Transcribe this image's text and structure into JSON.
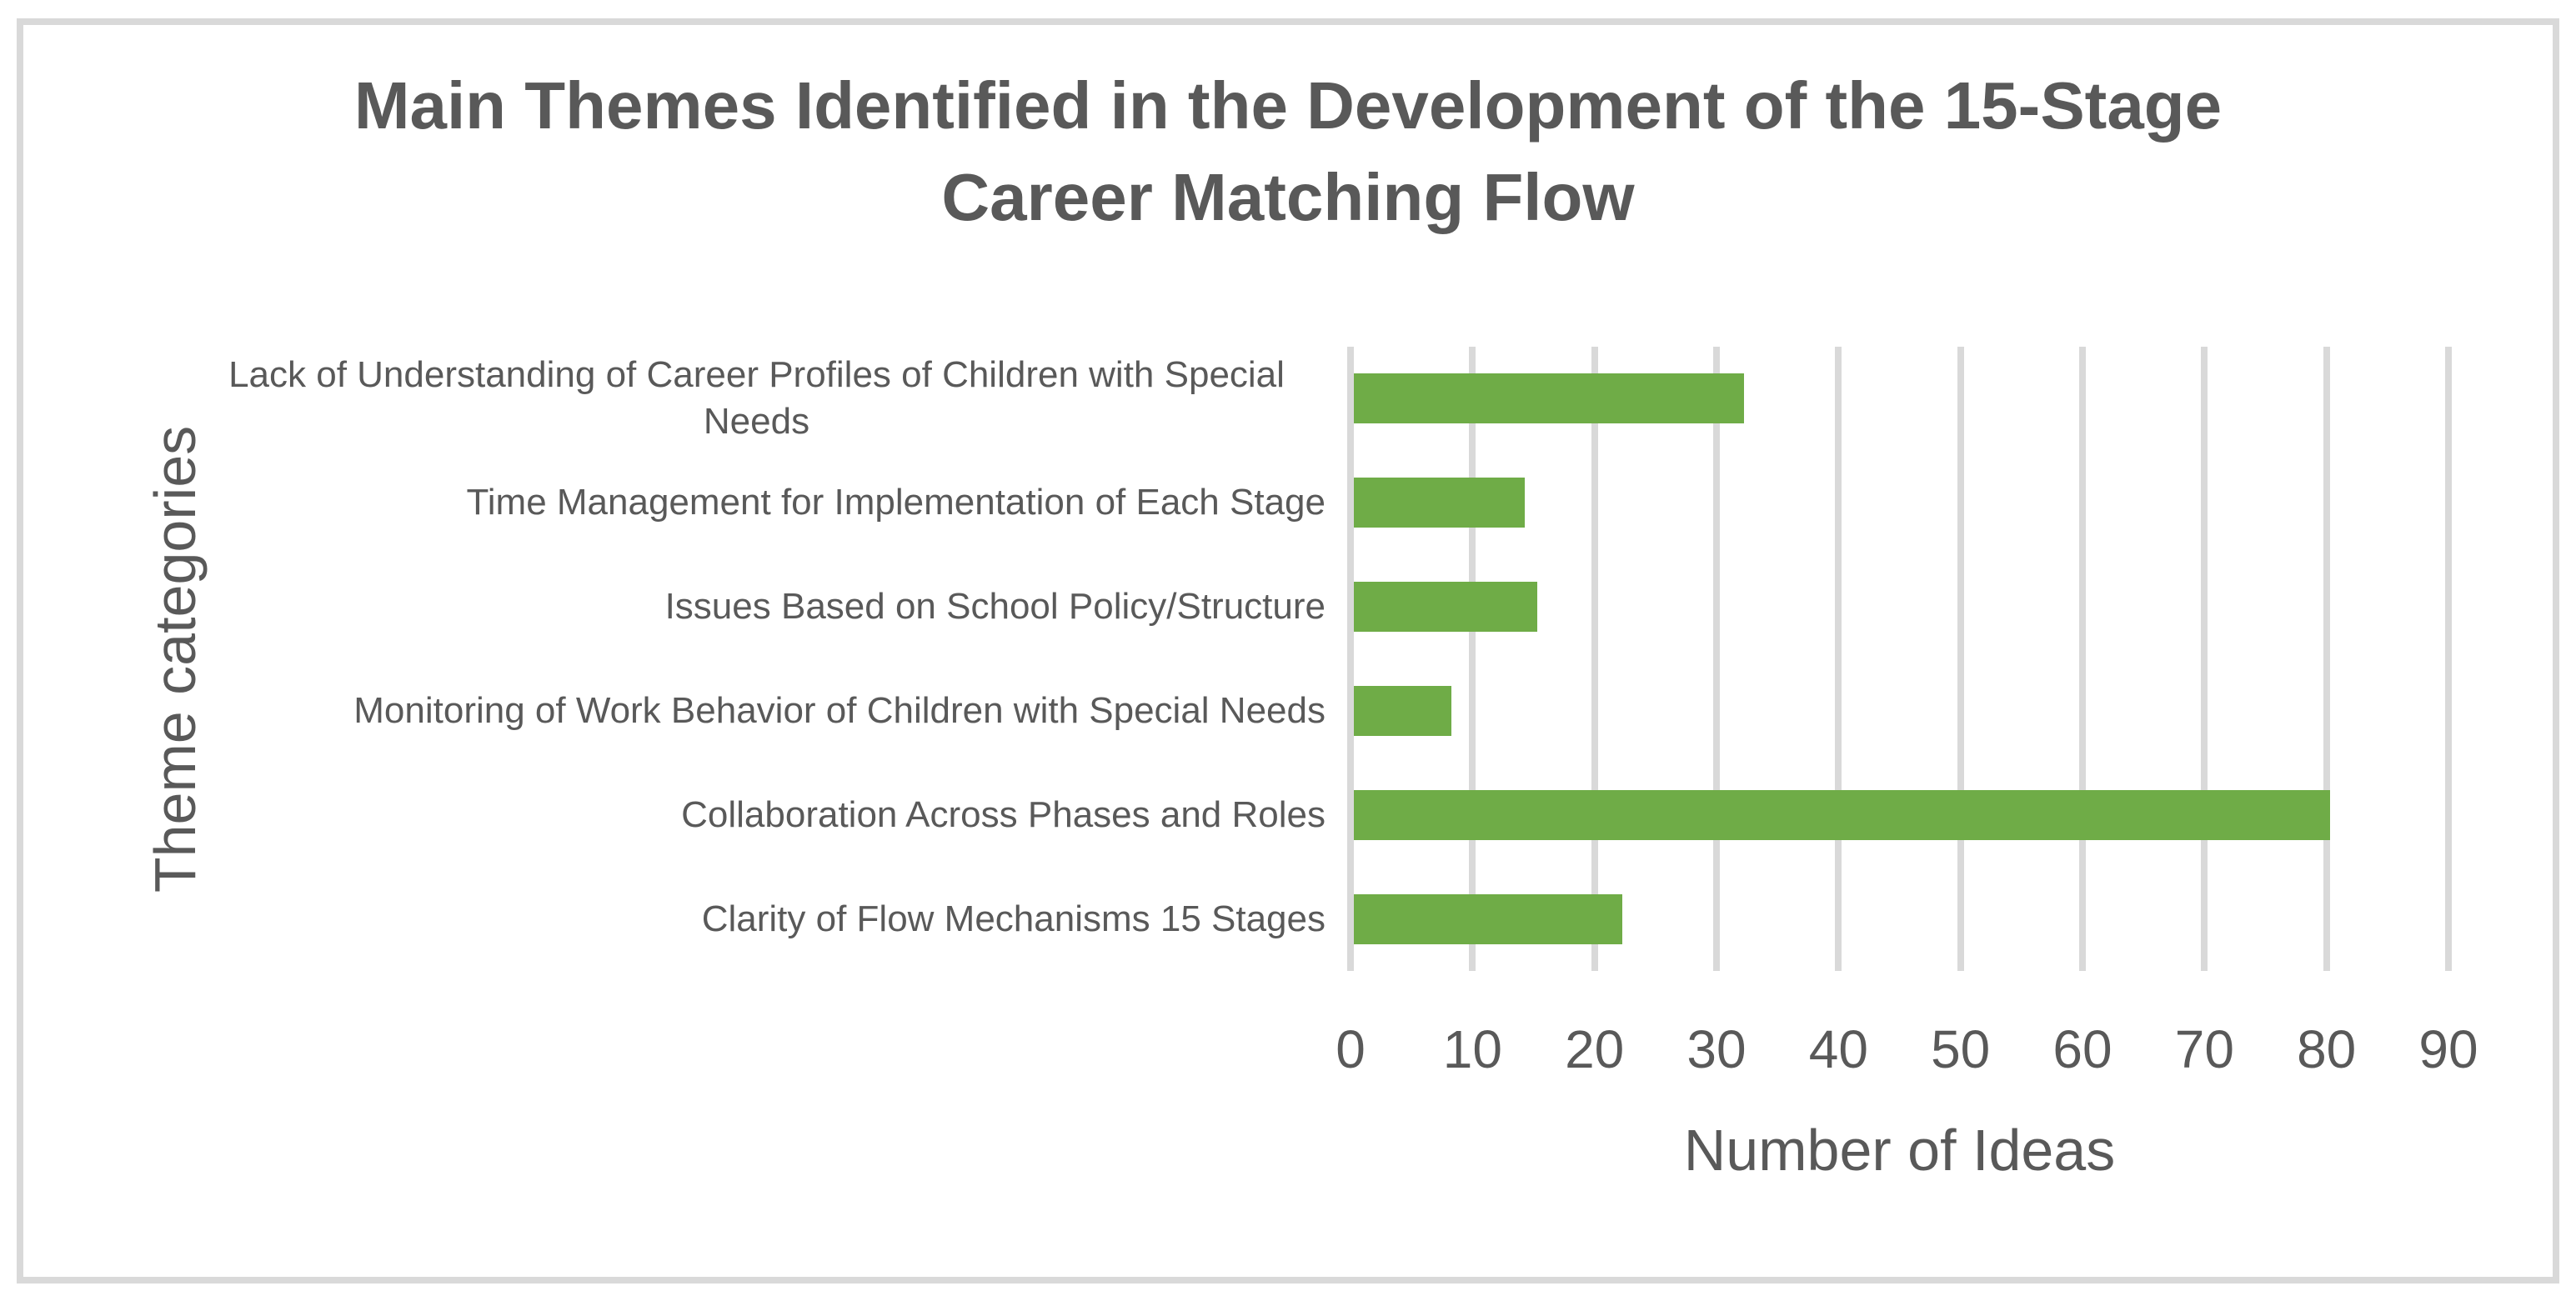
{
  "page": {
    "background_color": "#FFFFFF",
    "frame_border_color": "#D9D9D9"
  },
  "chart_data": {
    "type": "bar",
    "orientation": "horizontal",
    "title": "Main Themes Identified in the Development of the 15-Stage Career Matching Flow",
    "title_lines": [
      "Main Themes Identified in the Development of the 15-Stage",
      "Career Matching Flow"
    ],
    "categories": [
      "Lack of Understanding of Career Profiles of Children with Special Needs",
      "Time Management for Implementation of Each Stage",
      "Issues Based on School Policy/Structure",
      "Monitoring of Work Behavior of Children with Special Needs",
      "Collaboration Across Phases and Roles",
      "Clarity of Flow Mechanisms 15 Stages"
    ],
    "values": [
      32,
      14,
      15,
      8,
      80,
      22
    ],
    "xlabel": "Number of Ideas",
    "ylabel": "Theme categories",
    "xlim": [
      0,
      90
    ],
    "xticks": [
      0,
      10,
      20,
      30,
      40,
      50,
      60,
      70,
      80,
      90
    ],
    "grid": "vertical-gridlines-on",
    "legend": "none",
    "data_labels": "none",
    "bar_color": "#6FAC47",
    "gridline_color": "#D9D9D9",
    "text_color": "#595959"
  }
}
